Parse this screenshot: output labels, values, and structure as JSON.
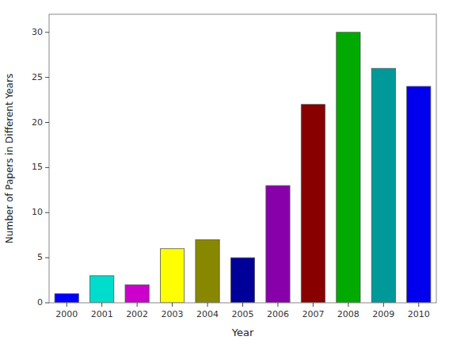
{
  "chart_data": {
    "type": "bar",
    "xlabel": "Year",
    "ylabel": "Number of Papers in Different Years",
    "categories": [
      "2000",
      "2001",
      "2002",
      "2003",
      "2004",
      "2005",
      "2006",
      "2007",
      "2008",
      "2009",
      "2010"
    ],
    "values": [
      1,
      3,
      2,
      6,
      7,
      5,
      13,
      22,
      30,
      26,
      24
    ],
    "colors": [
      "#0000FF",
      "#00DDCC",
      "#CC00CC",
      "#FFFF00",
      "#888800",
      "#000099",
      "#8800AA",
      "#880000",
      "#00AA00",
      "#009999",
      "#0000EE"
    ],
    "ylim": [
      0,
      32
    ],
    "yticks": [
      0,
      5,
      10,
      15,
      20,
      25,
      30
    ],
    "grid": false
  }
}
